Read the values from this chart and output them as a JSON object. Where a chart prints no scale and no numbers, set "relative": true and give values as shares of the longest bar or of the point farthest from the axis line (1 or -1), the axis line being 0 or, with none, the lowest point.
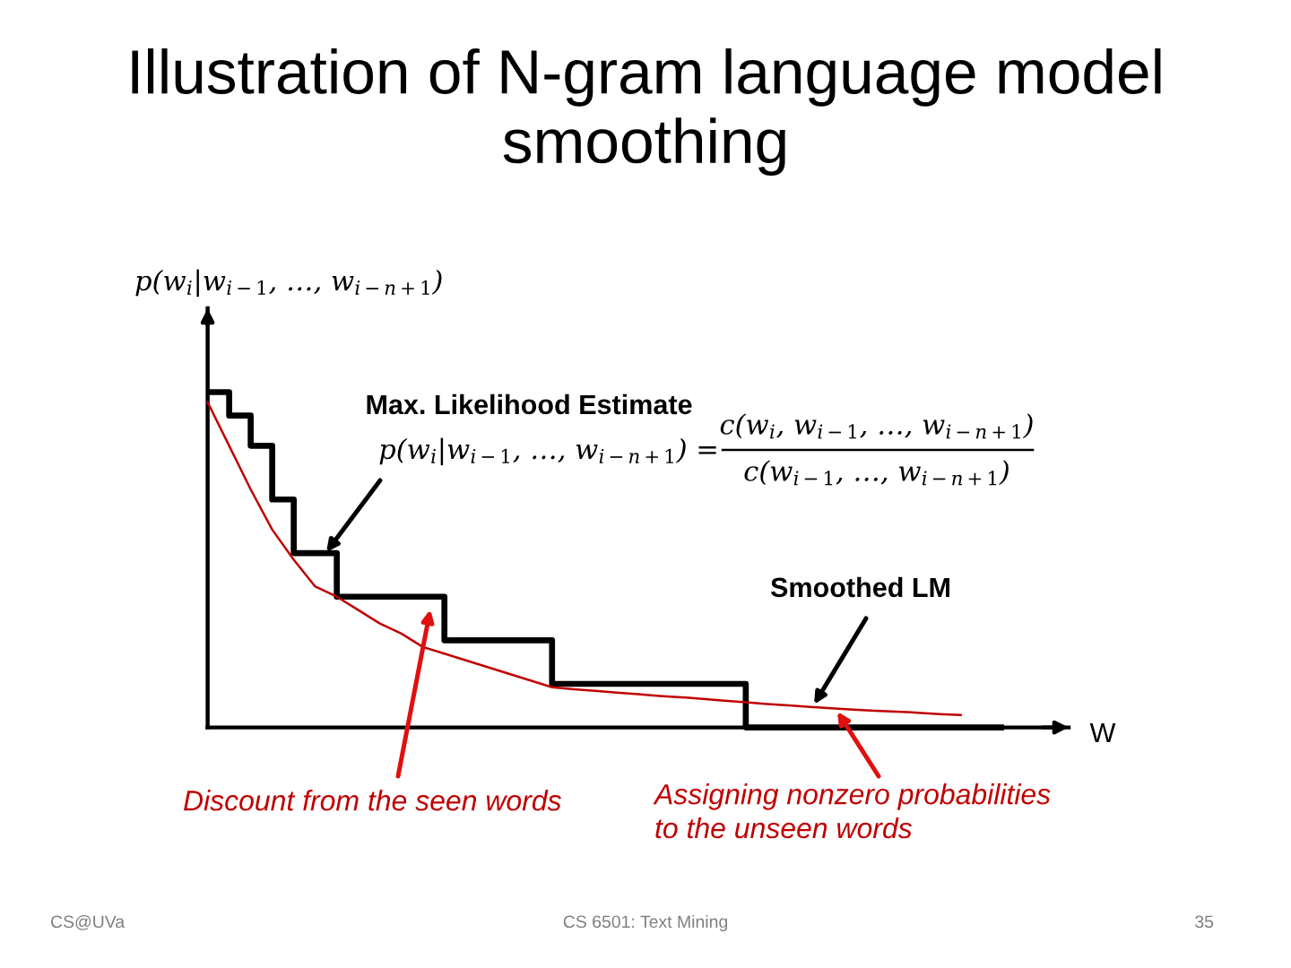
{
  "chart_data": {
    "type": "step",
    "title": "Illustration of N-gram language model smoothing",
    "xlabel": "W",
    "ylabel": "p(w$_{i}$|w$_{i−1}$, …, w$_{i−n+1}$)",
    "relative": true,
    "categories": [
      null,
      null,
      null,
      null,
      null,
      null,
      null,
      null,
      null,
      null,
      null,
      null,
      null,
      null,
      null,
      null,
      null,
      null,
      null,
      null,
      null,
      null,
      null,
      null,
      null,
      null,
      null,
      null,
      null,
      null,
      null,
      null,
      null,
      null,
      null,
      null,
      null,
      null,
      null,
      null,
      null
    ],
    "series": [
      {
        "color": "#000000",
        "values": [
          1,
          0.93,
          0.84,
          0.68,
          0.52,
          0.52,
          0.39,
          0.39,
          0.39,
          0.39,
          0.39,
          0.26,
          0.26,
          0.26,
          0.26,
          0.26,
          0.13,
          0.13,
          0.13,
          0.13,
          0.13,
          0.13,
          0.13,
          0.13,
          0.13,
          0,
          0,
          0,
          0,
          0,
          0,
          0,
          0,
          0,
          0,
          0,
          0,
          0,
          null,
          null,
          null
        ]
      },
      {
        "type": "line",
        "color": "#c00000",
        "values": [
          0.97,
          0.84,
          0.71,
          0.59,
          0.5,
          0.42,
          0.39,
          0.35,
          0.31,
          0.28,
          0.24,
          0.22,
          0.2,
          0.18,
          0.16,
          0.14,
          0.12,
          0.114,
          0.109,
          0.104,
          0.099,
          0.094,
          0.09,
          0.085,
          0.08,
          0.075,
          0.07,
          0.066,
          0.061,
          0.057,
          0.053,
          0.05,
          0.047,
          0.044,
          0.04,
          0.037,
          null,
          null,
          null,
          null,
          null
        ]
      }
    ],
    "annotations": [
      "Max. Likelihood Estimate",
      "p(w$_{i}$|w$_{i−1}$, …, w$_{i−n+1}$) =",
      "c(w$_{i}$, w$_{i−1}$, …, w$_{i−n+1}$)",
      "c(w$_{i−1}$, …, w$_{i−n+1}$)",
      "Smoothed LM",
      "Discount from the seen words",
      "Assigning nonzero probabilities\nto the unseen words",
      "CS@UVa",
      "CS 6501: Text Mining",
      "35"
    ]
  }
}
